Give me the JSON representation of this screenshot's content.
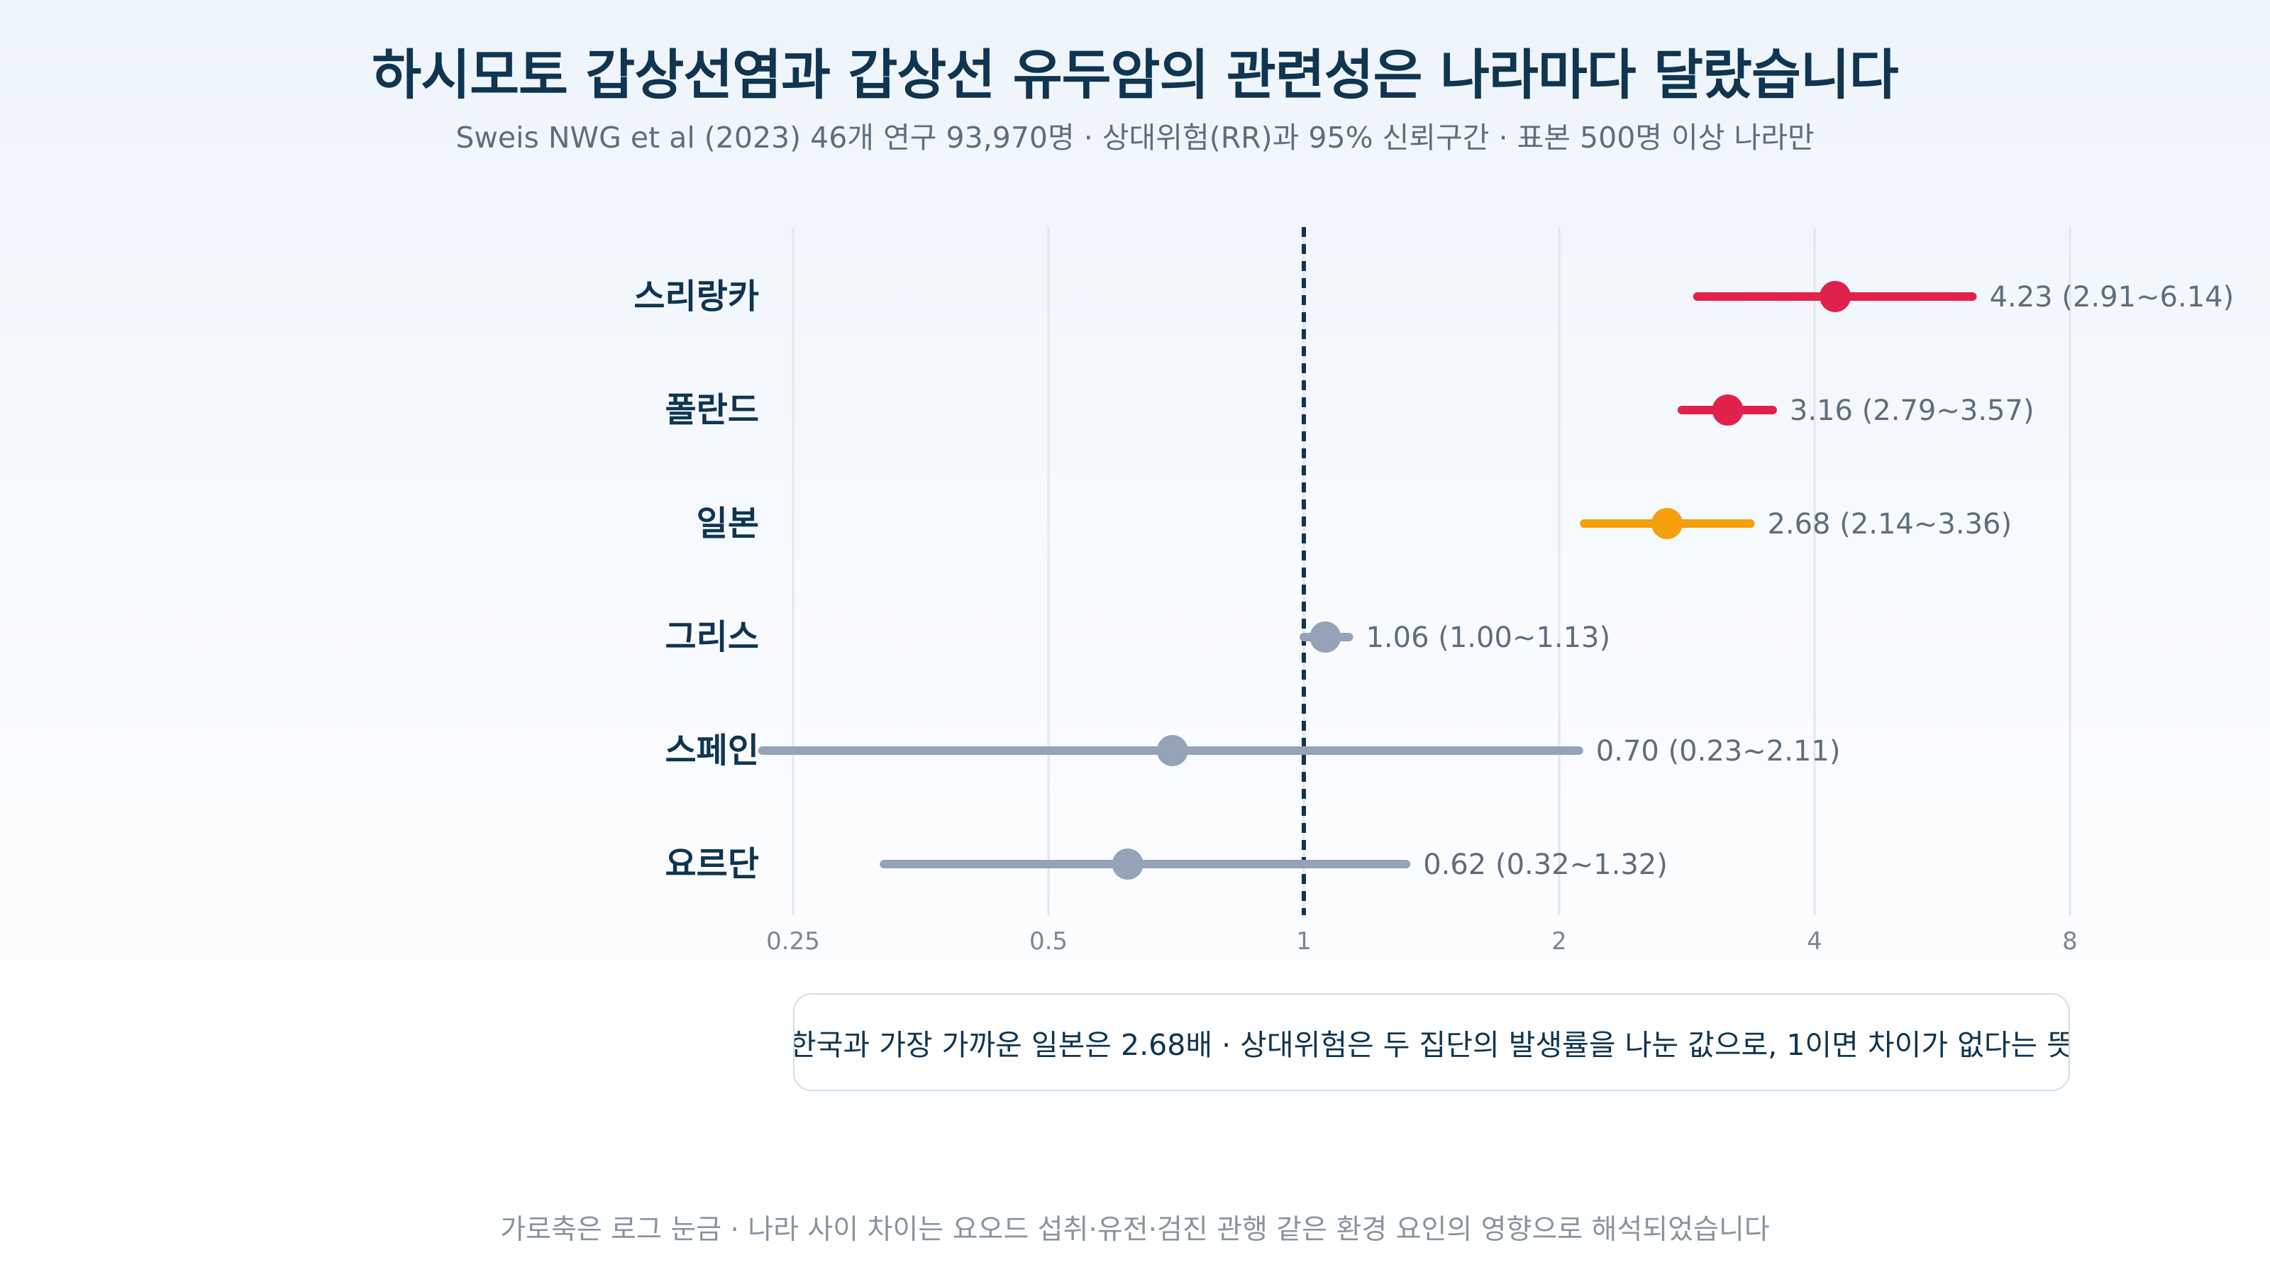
{
  "header": {
    "title": "하시모토 갑상선염과 갑상선 유두암의 관련성은 나라마다 달랐습니다",
    "subtitle": "Sweis NWG et al (2023) 46개 연구 93,970명 · 상대위험(RR)과 95% 신뢰구간 · 표본 500명 이상 나라만"
  },
  "note": "한국과 가장 가까운 일본은 2.68배 · 상대위험은 두 집단의 발생률을 나눈 값으로, 1이면 차이가 없다는 뜻",
  "footer": "가로축은 로그 눈금 · 나라 사이 차이는 요오드 섭취·유전·검진 관행 같은 환경 요인의 영향으로 해석되었습니다",
  "colors": {
    "high": "#e0214b",
    "highlight": "#f59f0c",
    "neutral": "#94a3b8",
    "label": "#0f3550",
    "reference": "#0f3550",
    "grid": "#e3e6ea"
  },
  "chart_data": {
    "type": "forest",
    "x_scale": "log2",
    "xlim": [
      0.25,
      8
    ],
    "x_ticks": [
      "0.25",
      "0.5",
      "1",
      "2",
      "4",
      "8"
    ],
    "reference_line": 1,
    "rows": [
      {
        "country": "스리랑카",
        "rr": 4.23,
        "lo": 2.91,
        "hi": 6.14,
        "label": "4.23 (2.91~6.14)",
        "color": "#e0214b"
      },
      {
        "country": "폴란드",
        "rr": 3.16,
        "lo": 2.79,
        "hi": 3.57,
        "label": "3.16 (2.79~3.57)",
        "color": "#e0214b"
      },
      {
        "country": "일본",
        "rr": 2.68,
        "lo": 2.14,
        "hi": 3.36,
        "label": "2.68 (2.14~3.36)",
        "color": "#f59f0c"
      },
      {
        "country": "그리스",
        "rr": 1.06,
        "lo": 1.0,
        "hi": 1.13,
        "label": "1.06 (1.00~1.13)",
        "color": "#94a3b8"
      },
      {
        "country": "스페인",
        "rr": 0.7,
        "lo": 0.23,
        "hi": 2.11,
        "label": "0.70 (0.23~2.11)",
        "color": "#94a3b8"
      },
      {
        "country": "요르단",
        "rr": 0.62,
        "lo": 0.32,
        "hi": 1.32,
        "label": "0.62 (0.32~1.32)",
        "color": "#94a3b8"
      }
    ]
  }
}
